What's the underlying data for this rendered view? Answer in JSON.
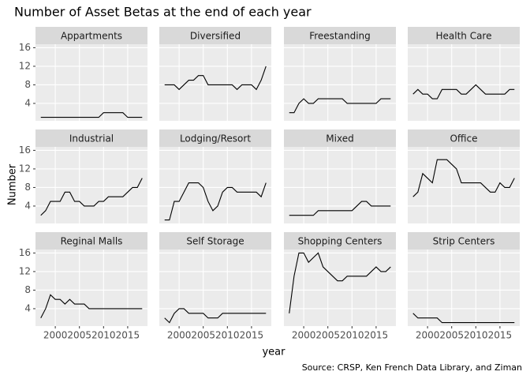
{
  "chart_data": {
    "type": "line",
    "title": "Number of Asset Betas at the end of each year",
    "x_label": "year",
    "y_label": "Number",
    "caption": "Source: CRSP, Ken French Data Library, and Ziman",
    "x": [
      1997,
      1998,
      1999,
      2000,
      2001,
      2002,
      2003,
      2004,
      2005,
      2006,
      2007,
      2008,
      2009,
      2010,
      2011,
      2012,
      2013,
      2014,
      2015,
      2016,
      2017,
      2018
    ],
    "xlim": [
      1995.9,
      2019.1
    ],
    "xticks": [
      2000,
      2005,
      2010,
      2015
    ],
    "ylim": [
      0.25,
      16.75
    ],
    "yticks": [
      4,
      8,
      12,
      16
    ],
    "grid": true,
    "color": "#000000",
    "facets": [
      {
        "name": "Appartments",
        "values": [
          1,
          1,
          1,
          1,
          1,
          1,
          1,
          1,
          1,
          1,
          1,
          1,
          1,
          2,
          2,
          2,
          2,
          2,
          1,
          1,
          1,
          1
        ]
      },
      {
        "name": "Diversified",
        "values": [
          8,
          8,
          8,
          7,
          8,
          9,
          9,
          10,
          10,
          8,
          8,
          8,
          8,
          8,
          8,
          7,
          8,
          8,
          8,
          7,
          9,
          12
        ]
      },
      {
        "name": "Freestanding",
        "values": [
          2,
          2,
          4,
          5,
          4,
          4,
          5,
          5,
          5,
          5,
          5,
          5,
          4,
          4,
          4,
          4,
          4,
          4,
          4,
          5,
          5,
          5
        ]
      },
      {
        "name": "Health Care",
        "values": [
          6,
          7,
          6,
          6,
          5,
          5,
          7,
          7,
          7,
          7,
          6,
          6,
          7,
          8,
          7,
          6,
          6,
          6,
          6,
          6,
          7,
          7
        ]
      },
      {
        "name": "Industrial",
        "values": [
          2,
          3,
          5,
          5,
          5,
          7,
          7,
          5,
          5,
          4,
          4,
          4,
          5,
          5,
          6,
          6,
          6,
          6,
          7,
          8,
          8,
          10
        ]
      },
      {
        "name": "Lodging/Resort",
        "values": [
          1,
          1,
          5,
          5,
          7,
          9,
          9,
          9,
          8,
          5,
          3,
          4,
          7,
          8,
          8,
          7,
          7,
          7,
          7,
          7,
          6,
          9
        ]
      },
      {
        "name": "Mixed",
        "values": [
          2,
          2,
          2,
          2,
          2,
          2,
          3,
          3,
          3,
          3,
          3,
          3,
          3,
          3,
          4,
          5,
          5,
          4,
          4,
          4,
          4,
          4
        ]
      },
      {
        "name": "Office",
        "values": [
          6,
          7,
          11,
          10,
          9,
          14,
          14,
          14,
          13,
          12,
          9,
          9,
          9,
          9,
          9,
          8,
          7,
          7,
          9,
          8,
          8,
          10
        ]
      },
      {
        "name": "Reginal Malls",
        "values": [
          2,
          4,
          7,
          6,
          6,
          5,
          6,
          5,
          5,
          5,
          4,
          4,
          4,
          4,
          4,
          4,
          4,
          4,
          4,
          4,
          4,
          4
        ]
      },
      {
        "name": "Self Storage",
        "values": [
          2,
          1,
          3,
          4,
          4,
          3,
          3,
          3,
          3,
          2,
          2,
          2,
          3,
          3,
          3,
          3,
          3,
          3,
          3,
          3,
          3,
          3
        ]
      },
      {
        "name": "Shopping Centers",
        "values": [
          3,
          11,
          16,
          16,
          14,
          15,
          16,
          13,
          12,
          11,
          10,
          10,
          11,
          11,
          11,
          11,
          11,
          12,
          13,
          12,
          12,
          13
        ]
      },
      {
        "name": "Strip Centers",
        "values": [
          3,
          2,
          2,
          2,
          2,
          2,
          1,
          1,
          1,
          1,
          1,
          1,
          1,
          1,
          1,
          1,
          1,
          1,
          1,
          1,
          1,
          1
        ]
      }
    ]
  }
}
